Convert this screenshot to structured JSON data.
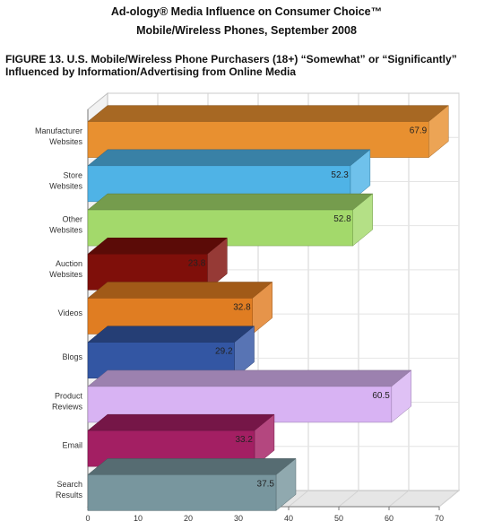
{
  "header": {
    "line1": "Ad-ology® Media Influence on Consumer Choice™",
    "line2": "Mobile/Wireless Phones, September 2008"
  },
  "chart_data": {
    "type": "bar",
    "orientation": "horizontal",
    "style": "3d",
    "title": "FIGURE 13. U.S. Mobile/Wireless Phone Purchasers (18+) “Somewhat” or “Significantly” Influenced by Information/Advertising from Online Media",
    "categories": [
      [
        "Manufacturer",
        "Websites"
      ],
      [
        "Store",
        "Websites"
      ],
      [
        "Other",
        "Websites"
      ],
      [
        "Auction",
        "Websites"
      ],
      [
        "Videos"
      ],
      [
        "Blogs"
      ],
      [
        "Product",
        "Reviews"
      ],
      [
        "Email"
      ],
      [
        "Search",
        "Results"
      ]
    ],
    "values": [
      67.9,
      52.3,
      52.8,
      23.8,
      32.8,
      29.2,
      60.5,
      33.2,
      37.5
    ],
    "value_labels": [
      "67.9",
      "52.3",
      "52.8",
      "23.8",
      "32.8",
      "29.2",
      "60.5",
      "33.2",
      "37.5"
    ],
    "colors": [
      "#e89030",
      "#4fb3e6",
      "#a3d96b",
      "#7f0f0a",
      "#e07d22",
      "#3356a3",
      "#d8b3f3",
      "#a31f63",
      "#78969e"
    ],
    "xlim": [
      0,
      70
    ],
    "xticks": [
      0,
      10,
      20,
      30,
      40,
      50,
      60,
      70
    ],
    "grid": true
  }
}
